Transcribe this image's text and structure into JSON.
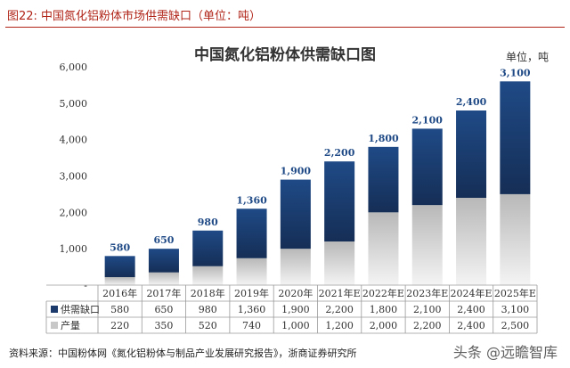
{
  "figure": {
    "caption": "图22:   中国氮化铝粉体市场供需缺口（单位：吨）",
    "source": "资料来源：中国粉体网《氮化铝粉体与制品产业发展研究报告》，浙商证券研究所",
    "watermark": "头条 @远瞻智库"
  },
  "chart_data": {
    "type": "bar",
    "stacked": true,
    "title": "中国氮化铝粉体供需缺口图",
    "unit": "单位，吨",
    "categories": [
      "2016年",
      "2017年",
      "2018年",
      "2019年",
      "2020年",
      "2021年E",
      "2022年E",
      "2023年E",
      "2024年E",
      "2025年E"
    ],
    "series": [
      {
        "name": "产量",
        "values": [
          220,
          350,
          520,
          740,
          1000,
          1200,
          2000,
          2200,
          2400,
          2500
        ],
        "color": "#c8c8c8"
      },
      {
        "name": "供需缺口",
        "values": [
          580,
          650,
          980,
          1360,
          1900,
          2200,
          1800,
          2100,
          2400,
          3100
        ],
        "color": "#1c3a6b"
      }
    ],
    "data_labels": [
      "580",
      "650",
      "980",
      "1,360",
      "1,900",
      "2,200",
      "1,800",
      "2,100",
      "2,400",
      "3,100"
    ],
    "table_rows": [
      {
        "name": "供需缺口",
        "values": [
          "580",
          "650",
          "980",
          "1,360",
          "1,900",
          "2,200",
          "1,800",
          "2,100",
          "2,400",
          "3,100"
        ]
      },
      {
        "name": "产量",
        "values": [
          "220",
          "350",
          "520",
          "740",
          "1,000",
          "1,200",
          "2,000",
          "2,200",
          "2,400",
          "2,500"
        ]
      }
    ],
    "y_ticks": [
      "-",
      "1,000",
      "2,000",
      "3,000",
      "4,000",
      "5,000",
      "6,000"
    ],
    "ylim": [
      0,
      6000
    ],
    "grid": false,
    "legend": "data table"
  }
}
